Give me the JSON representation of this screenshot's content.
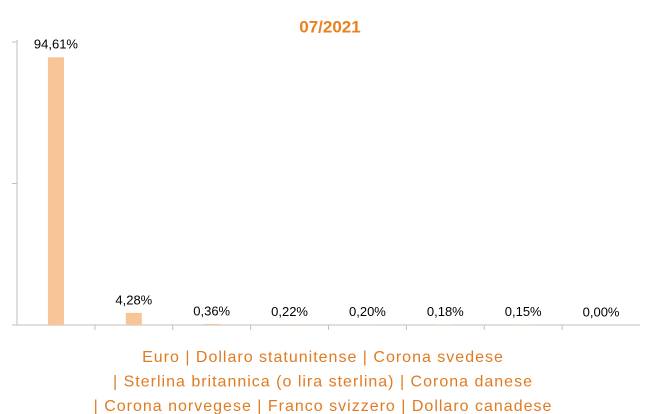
{
  "chart_data": {
    "type": "bar",
    "title": "07/2021",
    "categories": [
      null,
      null,
      null,
      null,
      null,
      null,
      null,
      null
    ],
    "values": [
      94.61,
      4.28,
      0.36,
      0.22,
      0.2,
      0.18,
      0.15,
      0.0
    ],
    "value_labels": [
      "94,61%",
      "4,28%",
      "0,36%",
      "0,22%",
      "0,20%",
      "0,18%",
      "0,15%",
      "0,00%"
    ],
    "color": "#f7c597",
    "ylim": [
      0,
      100
    ],
    "yticks": [
      0,
      50,
      100
    ],
    "caption": [
      "Euro | Dollaro statunitense | Corona svedese",
      "| Sterlina britannica (o lira sterlina) | Corona danese",
      "| Corona norvegese | Franco svizzero | Dollaro canadese"
    ]
  }
}
